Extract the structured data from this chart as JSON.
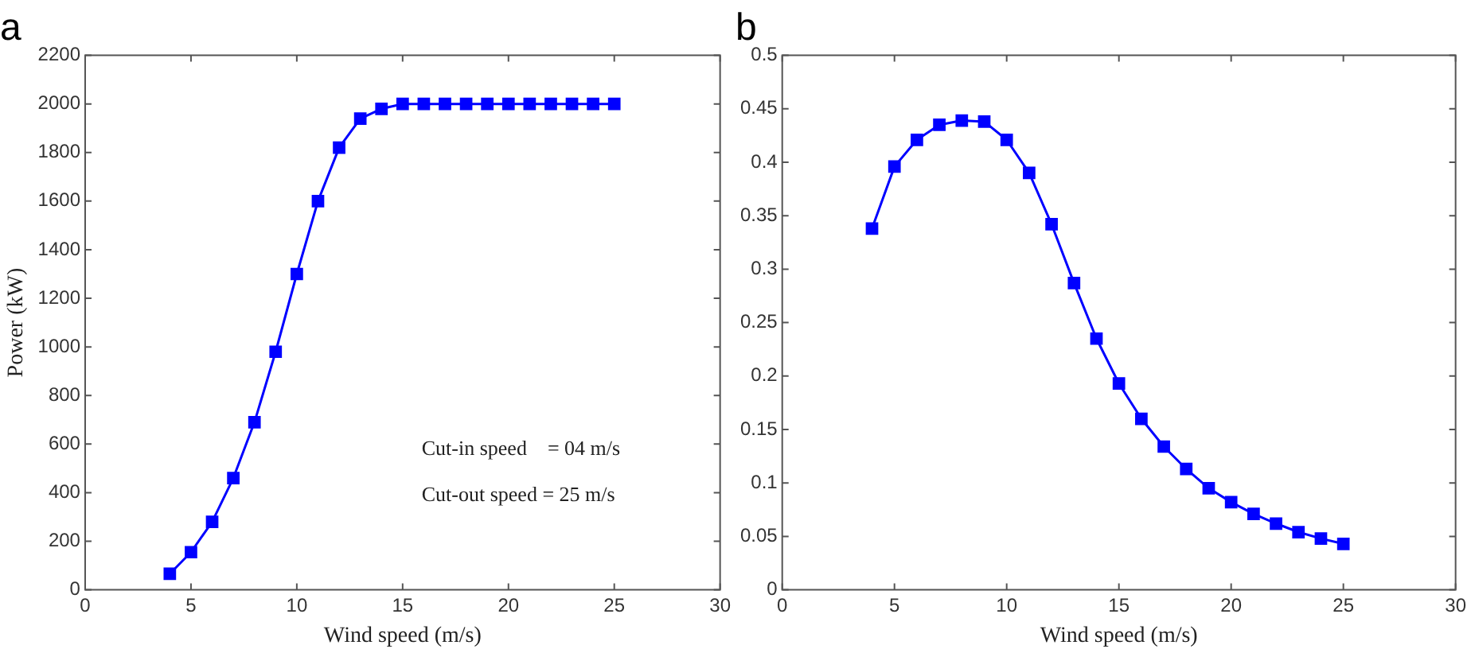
{
  "chart_data": [
    {
      "type": "line",
      "title": "a",
      "xlabel": "Wind speed (m/s)",
      "ylabel": "Power (kW)",
      "x": [
        4,
        5,
        6,
        7,
        8,
        9,
        10,
        11,
        12,
        13,
        14,
        15,
        16,
        17,
        18,
        19,
        20,
        21,
        22,
        23,
        24,
        25
      ],
      "series": [
        {
          "color": "#0000ff",
          "values": [
            66,
            155,
            280,
            460,
            690,
            980,
            1300,
            1600,
            1820,
            1940,
            1980,
            2000,
            2000,
            2000,
            2000,
            2000,
            2000,
            2000,
            2000,
            2000,
            2000,
            2000
          ]
        }
      ],
      "xlim": [
        0,
        30
      ],
      "xticks": [
        0,
        5,
        10,
        15,
        20,
        25,
        30
      ],
      "ylim": [
        0,
        2200
      ],
      "yticks": [
        0,
        200,
        400,
        600,
        800,
        1000,
        1200,
        1400,
        1600,
        1800,
        2000,
        2200
      ],
      "marker": "square",
      "line_style": "solid",
      "grid": false,
      "legend": false,
      "annotations": [
        "Cut-in speed    = 04 m/s",
        "Cut-out speed = 25 m/s"
      ]
    },
    {
      "type": "line",
      "title": "b",
      "xlabel": "Wind speed (m/s)",
      "x": [
        4,
        5,
        6,
        7,
        8,
        9,
        10,
        11,
        12,
        13,
        14,
        15,
        16,
        17,
        18,
        19,
        20,
        21,
        22,
        23,
        24,
        25
      ],
      "series": [
        {
          "color": "#0000ff",
          "values": [
            0.338,
            0.396,
            0.421,
            0.435,
            0.439,
            0.438,
            0.421,
            0.39,
            0.342,
            0.287,
            0.235,
            0.193,
            0.16,
            0.134,
            0.113,
            0.095,
            0.082,
            0.071,
            0.062,
            0.054,
            0.048,
            0.043
          ]
        }
      ],
      "xlim": [
        0,
        30
      ],
      "xticks": [
        0,
        5,
        10,
        15,
        20,
        25,
        30
      ],
      "ylim": [
        0,
        0.5
      ],
      "yticks": [
        0,
        0.05,
        0.1,
        0.15,
        0.2,
        0.25,
        0.3,
        0.35,
        0.4,
        0.45,
        0.5
      ],
      "marker": "square",
      "line_style": "solid",
      "grid": false,
      "legend": false
    }
  ]
}
